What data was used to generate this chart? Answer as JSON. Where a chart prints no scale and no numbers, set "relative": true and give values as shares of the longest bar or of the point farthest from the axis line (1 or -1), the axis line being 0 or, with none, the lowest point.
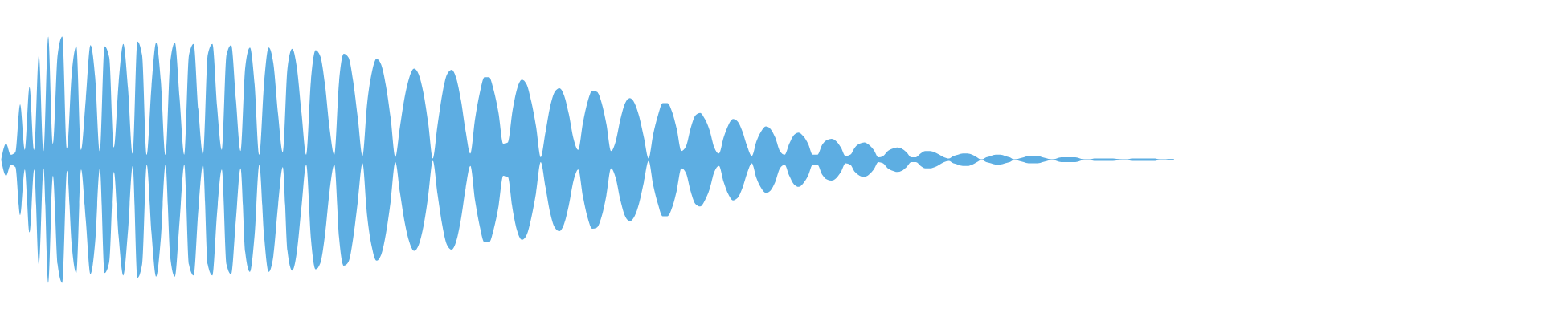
{
  "chart_data": {
    "type": "area",
    "relative": true,
    "categories": [
      null,
      null,
      null,
      null,
      null,
      null,
      null,
      null,
      null,
      null,
      null,
      null,
      null,
      null,
      null,
      null,
      null,
      null,
      null,
      null,
      null,
      null,
      null,
      null,
      null,
      null,
      null,
      null,
      null,
      null,
      null,
      null,
      null,
      null,
      null,
      null,
      null,
      null,
      null,
      null,
      null,
      null,
      null,
      null,
      null,
      null,
      null,
      null,
      null,
      null,
      null,
      null,
      null,
      null,
      null,
      null,
      null,
      null,
      null,
      null,
      null,
      null,
      null,
      null,
      null,
      null,
      null,
      null,
      null,
      null,
      null,
      null,
      null,
      null,
      null,
      null,
      null,
      null,
      null,
      null,
      null,
      null,
      null,
      null,
      null,
      null,
      null,
      null,
      null,
      null,
      null,
      null,
      null,
      null,
      null,
      null,
      null,
      null,
      null,
      null,
      null,
      null,
      null,
      null,
      null,
      null,
      null,
      null,
      null,
      null,
      null,
      null,
      null,
      null,
      null,
      null,
      null,
      null,
      null,
      null,
      null,
      null,
      null,
      null,
      null,
      null,
      null,
      null,
      null,
      null,
      null,
      null,
      null,
      null,
      null,
      null,
      null,
      null,
      null,
      null,
      null,
      null,
      null,
      null,
      null,
      null,
      null,
      null,
      null,
      null,
      null,
      null,
      null,
      null,
      null,
      null,
      null,
      null,
      null,
      null,
      null,
      null,
      null,
      null,
      null,
      null,
      null,
      null,
      null,
      null,
      null,
      null,
      null,
      null,
      null,
      null,
      null,
      null,
      null,
      null,
      null,
      null,
      null,
      null,
      null,
      null,
      null,
      null,
      null,
      null,
      null,
      null,
      null,
      null,
      null,
      null,
      null,
      null,
      null,
      null,
      null,
      null,
      null,
      null,
      null,
      null,
      null,
      null,
      null,
      null,
      null,
      null,
      null,
      null,
      null,
      null,
      null,
      null,
      null,
      null,
      null,
      null,
      null,
      null,
      null,
      null,
      null,
      null,
      null,
      null,
      null,
      null,
      null,
      null,
      null,
      null,
      null,
      null,
      null,
      null,
      null,
      null,
      null,
      null,
      null,
      null,
      null,
      null,
      null,
      null,
      null
    ],
    "series": [
      {
        "color": "#5dade2",
        "values": [
          0.01,
          0.13,
          0.04,
          0.06,
          0.45,
          0.08,
          0.59,
          0.08,
          0.85,
          0.07,
          1.0,
          0.13,
          0.85,
          1.0,
          0.09,
          0.69,
          0.92,
          0.08,
          0.49,
          0.93,
          0.67,
          0.07,
          0.92,
          0.83,
          0.1,
          0.62,
          0.94,
          0.58,
          0.05,
          0.96,
          0.85,
          0.04,
          0.59,
          0.95,
          0.64,
          0.04,
          0.79,
          0.95,
          0.5,
          0.04,
          0.85,
          0.94,
          0.41,
          0.04,
          0.85,
          0.94,
          0.43,
          0.08,
          0.85,
          0.93,
          0.49,
          0.07,
          0.75,
          0.91,
          0.61,
          0.04,
          0.61,
          0.91,
          0.78,
          0.37,
          0.06,
          0.74,
          0.9,
          0.75,
          0.38,
          0.04,
          0.64,
          0.89,
          0.84,
          0.61,
          0.25,
          0.04,
          0.63,
          0.86,
          0.83,
          0.64,
          0.34,
          0.03,
          0.46,
          0.71,
          0.82,
          0.77,
          0.6,
          0.34,
          0.02,
          0.27,
          0.51,
          0.67,
          0.74,
          0.69,
          0.54,
          0.3,
          0.01,
          0.28,
          0.53,
          0.69,
          0.73,
          0.66,
          0.48,
          0.23,
          0.05,
          0.33,
          0.54,
          0.67,
          0.67,
          0.56,
          0.38,
          0.13,
          0.14,
          0.4,
          0.58,
          0.65,
          0.61,
          0.47,
          0.27,
          0.02,
          0.22,
          0.43,
          0.55,
          0.58,
          0.52,
          0.37,
          0.17,
          0.08,
          0.3,
          0.47,
          0.56,
          0.55,
          0.46,
          0.29,
          0.07,
          0.15,
          0.33,
          0.46,
          0.5,
          0.46,
          0.35,
          0.18,
          0.01,
          0.21,
          0.36,
          0.46,
          0.46,
          0.39,
          0.25,
          0.07,
          0.11,
          0.26,
          0.36,
          0.38,
          0.33,
          0.24,
          0.1,
          0.05,
          0.18,
          0.28,
          0.33,
          0.31,
          0.23,
          0.11,
          0.03,
          0.15,
          0.23,
          0.27,
          0.25,
          0.18,
          0.07,
          0.04,
          0.13,
          0.2,
          0.22,
          0.19,
          0.13,
          0.04,
          0.04,
          0.12,
          0.16,
          0.17,
          0.15,
          0.1,
          0.03,
          0.04,
          0.1,
          0.13,
          0.14,
          0.12,
          0.08,
          0.02,
          0.03,
          0.07,
          0.09,
          0.1,
          0.09,
          0.06,
          0.02,
          0.02,
          0.05,
          0.07,
          0.07,
          0.06,
          0.04,
          0.02,
          0.01,
          0.03,
          0.04,
          0.05,
          0.05,
          0.04,
          0.02,
          0,
          0.02,
          0.03,
          0.04,
          0.04,
          0.03,
          0.02,
          0,
          0.01,
          0.02,
          0.03,
          0.03,
          0.03,
          0.02,
          0.01,
          0,
          0.01,
          0.02,
          0.02,
          0.02,
          0.02,
          0.01,
          0,
          0,
          0.01,
          0.01,
          0.01,
          0.01,
          0.01,
          0.005,
          0,
          0,
          0.01,
          0.01,
          0.01,
          0.01,
          0.01,
          0.01,
          0,
          0,
          0.005,
          0.005
        ]
      },
      {
        "color": "#5daee2",
        "values": [
          -0.01,
          -0.13,
          -0.04,
          -0.06,
          -0.45,
          -0.08,
          -0.59,
          -0.08,
          -0.85,
          -0.07,
          -1.0,
          -0.13,
          -0.85,
          -1.0,
          -0.09,
          -0.69,
          -0.92,
          -0.08,
          -0.49,
          -0.93,
          -0.67,
          -0.07,
          -0.92,
          -0.83,
          -0.1,
          -0.62,
          -0.94,
          -0.58,
          -0.05,
          -0.96,
          -0.85,
          -0.04,
          -0.59,
          -0.95,
          -0.64,
          -0.04,
          -0.79,
          -0.95,
          -0.5,
          -0.04,
          -0.85,
          -0.94,
          -0.41,
          -0.04,
          -0.85,
          -0.94,
          -0.43,
          -0.08,
          -0.85,
          -0.93,
          -0.49,
          -0.07,
          -0.75,
          -0.91,
          -0.61,
          -0.04,
          -0.61,
          -0.91,
          -0.78,
          -0.37,
          -0.06,
          -0.74,
          -0.9,
          -0.75,
          -0.38,
          -0.04,
          -0.64,
          -0.89,
          -0.84,
          -0.61,
          -0.25,
          -0.04,
          -0.63,
          -0.86,
          -0.83,
          -0.64,
          -0.34,
          -0.03,
          -0.46,
          -0.71,
          -0.82,
          -0.77,
          -0.6,
          -0.34,
          -0.02,
          -0.27,
          -0.51,
          -0.67,
          -0.74,
          -0.69,
          -0.54,
          -0.3,
          -0.01,
          -0.28,
          -0.53,
          -0.69,
          -0.73,
          -0.66,
          -0.48,
          -0.23,
          -0.05,
          -0.33,
          -0.54,
          -0.67,
          -0.67,
          -0.56,
          -0.38,
          -0.13,
          -0.14,
          -0.4,
          -0.58,
          -0.65,
          -0.61,
          -0.47,
          -0.27,
          -0.02,
          -0.22,
          -0.43,
          -0.55,
          -0.58,
          -0.52,
          -0.37,
          -0.17,
          -0.08,
          -0.3,
          -0.47,
          -0.56,
          -0.55,
          -0.46,
          -0.29,
          -0.07,
          -0.15,
          -0.33,
          -0.46,
          -0.5,
          -0.46,
          -0.35,
          -0.18,
          -0.01,
          -0.21,
          -0.36,
          -0.46,
          -0.46,
          -0.39,
          -0.25,
          -0.07,
          -0.11,
          -0.26,
          -0.36,
          -0.38,
          -0.33,
          -0.24,
          -0.1,
          -0.05,
          -0.18,
          -0.28,
          -0.33,
          -0.31,
          -0.23,
          -0.11,
          -0.03,
          -0.15,
          -0.23,
          -0.27,
          -0.25,
          -0.18,
          -0.07,
          -0.04,
          -0.13,
          -0.2,
          -0.22,
          -0.19,
          -0.13,
          -0.04,
          -0.04,
          -0.12,
          -0.16,
          -0.17,
          -0.15,
          -0.1,
          -0.03,
          -0.04,
          -0.1,
          -0.13,
          -0.14,
          -0.12,
          -0.08,
          -0.02,
          -0.03,
          -0.07,
          -0.09,
          -0.1,
          -0.09,
          -0.06,
          -0.02,
          -0.02,
          -0.05,
          -0.07,
          -0.07,
          -0.06,
          -0.04,
          -0.02,
          -0.01,
          -0.03,
          -0.04,
          -0.05,
          -0.05,
          -0.04,
          -0.02,
          0,
          -0.02,
          -0.03,
          -0.04,
          -0.04,
          -0.03,
          -0.02,
          0,
          -0.01,
          -0.02,
          -0.03,
          -0.03,
          -0.03,
          -0.02,
          -0.01,
          0,
          -0.01,
          -0.02,
          -0.02,
          -0.02,
          -0.02,
          -0.01,
          0,
          0,
          -0.01,
          -0.01,
          -0.01,
          -0.01,
          -0.01,
          -0.005,
          0,
          0,
          -0.01,
          -0.01,
          -0.01,
          -0.01,
          -0.01,
          -0.01,
          0,
          0,
          -0.005,
          -0.005
        ]
      }
    ]
  }
}
